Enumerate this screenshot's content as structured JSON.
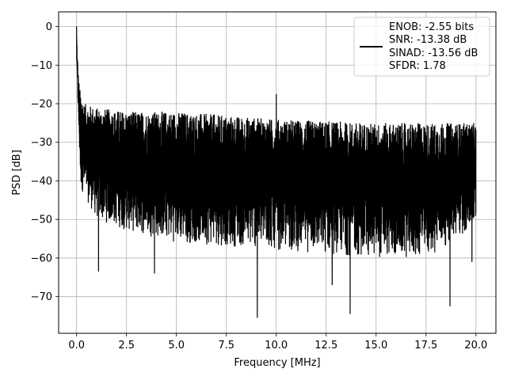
{
  "chart_data": {
    "type": "line",
    "title": "",
    "xlabel": "Frequency [MHz]",
    "ylabel": "PSD [dB]",
    "xlim": [
      -0.9,
      21.0
    ],
    "ylim": [
      -79.5,
      3.8
    ],
    "x_ticks": [
      0.0,
      2.5,
      5.0,
      7.5,
      10.0,
      12.5,
      15.0,
      17.5,
      20.0
    ],
    "x_tick_labels": [
      "0.0",
      "2.5",
      "5.0",
      "7.5",
      "10.0",
      "12.5",
      "15.0",
      "17.5",
      "20.0"
    ],
    "y_ticks": [
      0,
      -10,
      -20,
      -30,
      -40,
      -50,
      -60,
      -70
    ],
    "y_tick_labels": [
      "0",
      "−10",
      "−20",
      "−30",
      "−40",
      "−50",
      "−60",
      "−70"
    ],
    "grid": true,
    "legend_position": "top-right",
    "line_color": "#000000",
    "series": [
      {
        "legend_lines": [
          "ENOB: -2.55 bits",
          "SNR: -13.38 dB",
          "SINAD: -13.56 dB",
          "SFDR: 1.78"
        ],
        "x_range": [
          0.0,
          20.0
        ],
        "envelope_upper": [
          [
            0.0,
            0.0
          ],
          [
            0.05,
            -10
          ],
          [
            0.15,
            -16
          ],
          [
            0.4,
            -20
          ],
          [
            1.0,
            -21
          ],
          [
            2.5,
            -22
          ],
          [
            5.0,
            -22
          ],
          [
            7.5,
            -23
          ],
          [
            10.0,
            -24
          ],
          [
            12.5,
            -24.5
          ],
          [
            15.0,
            -25
          ],
          [
            17.5,
            -25
          ],
          [
            20.0,
            -25
          ]
        ],
        "envelope_lower": [
          [
            0.0,
            -10
          ],
          [
            0.2,
            -42
          ],
          [
            1.0,
            -50
          ],
          [
            2.5,
            -53
          ],
          [
            5.0,
            -56
          ],
          [
            7.5,
            -57
          ],
          [
            10.0,
            -58
          ],
          [
            12.5,
            -59
          ],
          [
            15.0,
            -60
          ],
          [
            17.5,
            -60
          ],
          [
            20.0,
            -52
          ]
        ],
        "peaks": [
          [
            0.0,
            0.0
          ],
          [
            0.05,
            -9
          ],
          [
            10.0,
            -17.5
          ]
        ],
        "dips": [
          [
            1.1,
            -63.5
          ],
          [
            3.9,
            -64
          ],
          [
            9.05,
            -75.5
          ],
          [
            12.8,
            -67
          ],
          [
            13.7,
            -74.5
          ],
          [
            18.7,
            -72.5
          ],
          [
            19.8,
            -61
          ]
        ]
      }
    ]
  }
}
